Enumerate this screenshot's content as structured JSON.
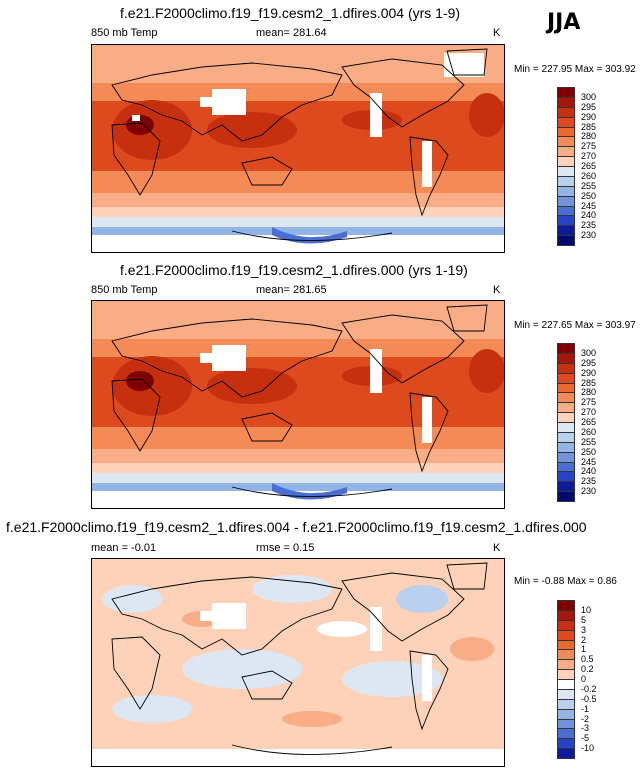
{
  "season": "JJA",
  "panels": [
    {
      "title": "f.e21.F2000climo.f19_f19.cesm2_1.dfires.004 (yrs 1-9)",
      "left_label": "850 mb Temp",
      "center_label": "mean= 281.64",
      "unit": "K",
      "minmax": "Min = 227.95 Max = 303.92",
      "cbar_levels": [
        "300",
        "295",
        "290",
        "285",
        "280",
        "275",
        "270",
        "265",
        "260",
        "255",
        "250",
        "245",
        "240",
        "235",
        "230"
      ]
    },
    {
      "title": "f.e21.F2000climo.f19_f19.cesm2_1.dfires.000 (yrs 1-19)",
      "left_label": "850 mb Temp",
      "center_label": "mean= 281.65",
      "unit": "K",
      "minmax": "Min = 227.65 Max = 303.97",
      "cbar_levels": [
        "300",
        "295",
        "290",
        "285",
        "280",
        "275",
        "270",
        "265",
        "260",
        "255",
        "250",
        "245",
        "240",
        "235",
        "230"
      ]
    },
    {
      "title": "f.e21.F2000climo.f19_f19.cesm2_1.dfires.004 - f.e21.F2000climo.f19_f19.cesm2_1.dfires.000",
      "left_label": "mean =  -0.01",
      "center_label": "rmse =   0.15",
      "unit": "K",
      "minmax": "Min =  -0.88 Max =   0.86",
      "cbar_levels": [
        "10",
        "5",
        "3",
        "2",
        "1",
        "0.5",
        "0.2",
        "0",
        "-0.2",
        "-0.5",
        "-1",
        "-2",
        "-3",
        "-5",
        "-10"
      ]
    }
  ],
  "colors": {
    "temp_scale": [
      "#7f0000",
      "#a3180b",
      "#c7300f",
      "#dc4a1e",
      "#e9692f",
      "#f48a55",
      "#f9ad86",
      "#fdd2b8",
      "#dde7f4",
      "#b9d0ee",
      "#92b4e6",
      "#6f94dc",
      "#4a6ed2",
      "#2445c3",
      "#0a1c9c",
      "#000a6a"
    ],
    "diff_scale": [
      "#7f0000",
      "#a3180b",
      "#c7300f",
      "#dc4a1e",
      "#e9692f",
      "#f48a55",
      "#f9ad86",
      "#fdd2b8",
      "#ffffff",
      "#dde7f4",
      "#b9d0ee",
      "#92b4e6",
      "#6f94dc",
      "#4a6ed2",
      "#2445c3",
      "#0a1c9c"
    ]
  },
  "chart_data": [
    {
      "type": "heatmap",
      "title": "f.e21.F2000climo.f19_f19.cesm2_1.dfires.004 (yrs 1-9)",
      "variable": "850 mb Temp",
      "units": "K",
      "mean": 281.64,
      "min": 227.95,
      "max": 303.92,
      "contour_levels": [
        230,
        235,
        240,
        245,
        250,
        255,
        260,
        265,
        270,
        275,
        280,
        285,
        290,
        295,
        300
      ]
    },
    {
      "type": "heatmap",
      "title": "f.e21.F2000climo.f19_f19.cesm2_1.dfires.000 (yrs 1-19)",
      "variable": "850 mb Temp",
      "units": "K",
      "mean": 281.65,
      "min": 227.65,
      "max": 303.97,
      "contour_levels": [
        230,
        235,
        240,
        245,
        250,
        255,
        260,
        265,
        270,
        275,
        280,
        285,
        290,
        295,
        300
      ]
    },
    {
      "type": "heatmap",
      "title": "f.e21.F2000climo.f19_f19.cesm2_1.dfires.004 - f.e21.F2000climo.f19_f19.cesm2_1.dfires.000",
      "units": "K",
      "mean": -0.01,
      "rmse": 0.15,
      "min": -0.88,
      "max": 0.86,
      "contour_levels": [
        -10,
        -5,
        -3,
        -2,
        -1,
        -0.5,
        -0.2,
        0,
        0.2,
        0.5,
        1,
        2,
        3,
        5,
        10
      ]
    }
  ]
}
